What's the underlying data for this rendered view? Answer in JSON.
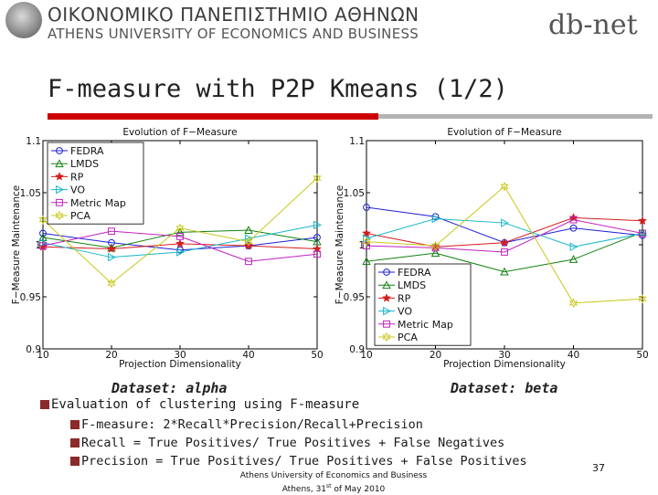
{
  "header": {
    "university_greek": "ΟΙΚΟΝΟΜΙΚΟ ΠΑΝΕΠΙΣΤΗΜΙΟ ΑΘΗΝΩΝ",
    "university_english": "ATHENS UNIVERSITY OF ECONOMICS AND BUSINESS",
    "logo_text": "db-net"
  },
  "slide_title": "F-measure with P2P Kmeans (1/2)",
  "colors": {
    "underline_red": "#cc0000",
    "underline_grey": "#b3b3b3",
    "bullet_marker": "#8a2a2a"
  },
  "chart_data": [
    {
      "type": "line",
      "title": "Evolution of F−Measure",
      "xlabel": "Projection Dimensionality",
      "ylabel": "F−Measure Maintenance",
      "x": [
        10,
        20,
        30,
        40,
        50
      ],
      "xticks": [
        "10",
        "20",
        "30",
        "40",
        "50"
      ],
      "yticks": [
        "0.9",
        "0.95",
        "1",
        "1.05",
        "1.1"
      ],
      "ylim": [
        0.9,
        1.1
      ],
      "xlim": [
        10,
        50
      ],
      "legend_position": "top-left",
      "dataset_label": "Dataset: alpha",
      "series": [
        {
          "name": "FEDRA",
          "marker": "circle",
          "color": "#1f1fd6",
          "values": [
            1.011,
            1.002,
            0.995,
            0.999,
            1.007
          ]
        },
        {
          "name": "LMDS",
          "marker": "triangle-up",
          "color": "#128012",
          "values": [
            1.007,
            0.997,
            1.012,
            1.014,
            1.003
          ]
        },
        {
          "name": "RP",
          "marker": "star",
          "color": "#d41c1c",
          "values": [
            0.998,
            0.996,
            1.001,
            0.999,
            0.996
          ]
        },
        {
          "name": "VO",
          "marker": "triangle-right",
          "color": "#19b7c9",
          "values": [
            1.002,
            0.988,
            0.993,
            1.006,
            1.019
          ]
        },
        {
          "name": "Metric Map",
          "marker": "square",
          "color": "#c020c0",
          "values": [
            0.999,
            1.013,
            1.008,
            0.984,
            0.991
          ]
        },
        {
          "name": "PCA",
          "marker": "hexagram",
          "color": "#c8c81a",
          "values": [
            1.024,
            0.963,
            1.016,
            1.003,
            1.064
          ]
        }
      ]
    },
    {
      "type": "line",
      "title": "Evolution of F−Measure",
      "xlabel": "Projection Dimensionality",
      "ylabel": "F−Measure Maintenance",
      "x": [
        10,
        20,
        30,
        40,
        50
      ],
      "xticks": [
        "10",
        "20",
        "30",
        "40",
        "50"
      ],
      "yticks": [
        "0.9",
        "0.95",
        "1",
        "1.05",
        "1.1"
      ],
      "ylim": [
        0.9,
        1.1
      ],
      "xlim": [
        10,
        50
      ],
      "legend_position": "bottom-left",
      "dataset_label": "Dataset: beta",
      "series": [
        {
          "name": "FEDRA",
          "marker": "circle",
          "color": "#1f1fd6",
          "values": [
            1.036,
            1.027,
            1.002,
            1.016,
            1.009
          ]
        },
        {
          "name": "LMDS",
          "marker": "triangle-up",
          "color": "#128012",
          "values": [
            0.984,
            0.992,
            0.974,
            0.986,
            1.012
          ]
        },
        {
          "name": "RP",
          "marker": "star",
          "color": "#d41c1c",
          "values": [
            1.011,
            0.998,
            1.002,
            1.026,
            1.023
          ]
        },
        {
          "name": "VO",
          "marker": "triangle-right",
          "color": "#19b7c9",
          "values": [
            1.006,
            1.025,
            1.021,
            0.998,
            1.011
          ]
        },
        {
          "name": "Metric Map",
          "marker": "square",
          "color": "#c020c0",
          "values": [
            0.999,
            0.997,
            0.993,
            1.024,
            1.011
          ]
        },
        {
          "name": "PCA",
          "marker": "hexagram",
          "color": "#c8c81a",
          "values": [
            1.003,
            0.999,
            1.056,
            0.944,
            0.948
          ]
        }
      ]
    }
  ],
  "bullets": {
    "main": "Evaluation of clustering using F-measure",
    "sub": [
      "F-measure: 2*Recall*Precision/Recall+Precision",
      "Recall = True Positives/ True Positives + False Negatives",
      "Precision = True Positives/ True Positives + False Positives"
    ]
  },
  "footer": {
    "line1": "Athens University of Economics and Business",
    "line2_prefix": "Athens, 31",
    "line2_sup": "st",
    "line2_suffix": " of May 2010"
  },
  "page_number": "37"
}
